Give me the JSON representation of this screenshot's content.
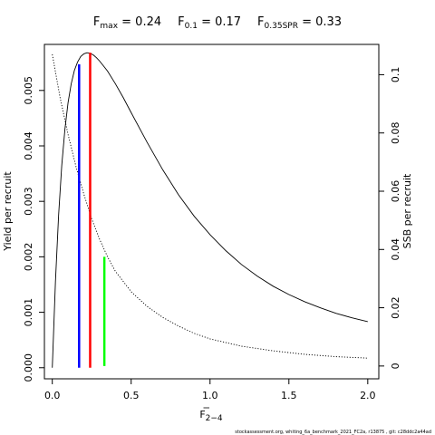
{
  "title": {
    "fmax": {
      "label": "F",
      "sub": "max",
      "eq": " = 0.24"
    },
    "f01": {
      "label": "F",
      "sub": "0.1",
      "eq": " = 0.17"
    },
    "f035": {
      "label": "F",
      "sub": "0.35SPR",
      "eq": " = 0.33"
    }
  },
  "footer_text": "stockassessment.org,  whiting_6a_benchmark_2021_FC2a,  r13875 ,  git: c28ddc2a44ad",
  "chart_data": {
    "type": "line",
    "xlabel": {
      "main": "F",
      "sub": "2−4"
    },
    "ylabel_left": "Yield per recruit",
    "ylabel_right": "SSB per recruit",
    "xlim": [
      -0.05,
      2.07
    ],
    "ylim_left": [
      -0.0002,
      0.00583
    ],
    "ylim_right": [
      -0.0044,
      0.1104
    ],
    "x_ticks": [
      {
        "value": 0.0,
        "label": "0.0"
      },
      {
        "value": 0.5,
        "label": "0.5"
      },
      {
        "value": 1.0,
        "label": "1.0"
      },
      {
        "value": 1.5,
        "label": "1.5"
      },
      {
        "value": 2.0,
        "label": "2.0"
      }
    ],
    "y_left_ticks": [
      {
        "value": 0.0,
        "label": "0.000"
      },
      {
        "value": 0.001,
        "label": "0.001"
      },
      {
        "value": 0.002,
        "label": "0.002"
      },
      {
        "value": 0.003,
        "label": "0.003"
      },
      {
        "value": 0.004,
        "label": "0.004"
      },
      {
        "value": 0.005,
        "label": "0.005"
      }
    ],
    "y_right_ticks": [
      {
        "value": 0.0,
        "label": "0"
      },
      {
        "value": 0.02,
        "label": "0.02"
      },
      {
        "value": 0.04,
        "label": "0.04"
      },
      {
        "value": 0.06,
        "label": "0.06"
      },
      {
        "value": 0.08,
        "label": "0.08"
      },
      {
        "value": 0.1,
        "label": "0.1"
      }
    ],
    "series": [
      {
        "axis": "left",
        "style": "solid",
        "x": [
          0,
          0.02,
          0.04,
          0.06,
          0.08,
          0.1,
          0.12,
          0.14,
          0.16,
          0.18,
          0.2,
          0.22,
          0.24,
          0.26,
          0.28,
          0.3,
          0.35,
          0.4,
          0.45,
          0.5,
          0.6,
          0.7,
          0.8,
          0.9,
          1.0,
          1.1,
          1.2,
          1.3,
          1.4,
          1.5,
          1.6,
          1.7,
          1.8,
          1.9,
          2.0
        ],
        "y": [
          0.0,
          0.00155,
          0.00275,
          0.00365,
          0.0043,
          0.00478,
          0.00512,
          0.00536,
          0.00551,
          0.00561,
          0.00566,
          0.00568,
          0.00567,
          0.00564,
          0.00559,
          0.00553,
          0.00535,
          0.00512,
          0.00487,
          0.0046,
          0.00407,
          0.00357,
          0.00312,
          0.00273,
          0.0024,
          0.00211,
          0.00186,
          0.00165,
          0.00147,
          0.00132,
          0.00119,
          0.00108,
          0.00098,
          0.0009,
          0.00083
        ]
      },
      {
        "axis": "right",
        "style": "dotted",
        "x": [
          0,
          0.05,
          0.1,
          0.15,
          0.2,
          0.25,
          0.3,
          0.35,
          0.4,
          0.5,
          0.6,
          0.7,
          0.8,
          0.9,
          1.0,
          1.2,
          1.4,
          1.6,
          1.8,
          2.0
        ],
        "y": [
          0.107,
          0.092,
          0.0795,
          0.0685,
          0.059,
          0.0505,
          0.0435,
          0.0375,
          0.0325,
          0.0255,
          0.0205,
          0.0167,
          0.0137,
          0.0112,
          0.0093,
          0.0068,
          0.0052,
          0.004,
          0.0032,
          0.0027
        ]
      }
    ],
    "reference_lines": [
      {
        "name": "F0.1",
        "x": 0.17,
        "axis": "left",
        "y": 0.00547,
        "color": "#0000ff"
      },
      {
        "name": "Fmax",
        "x": 0.24,
        "axis": "left",
        "y": 0.00568,
        "color": "#ff0000"
      },
      {
        "name": "F0.35SPR",
        "x": 0.33,
        "axis": "right",
        "y": 0.0375,
        "color": "#00ff00"
      }
    ]
  }
}
